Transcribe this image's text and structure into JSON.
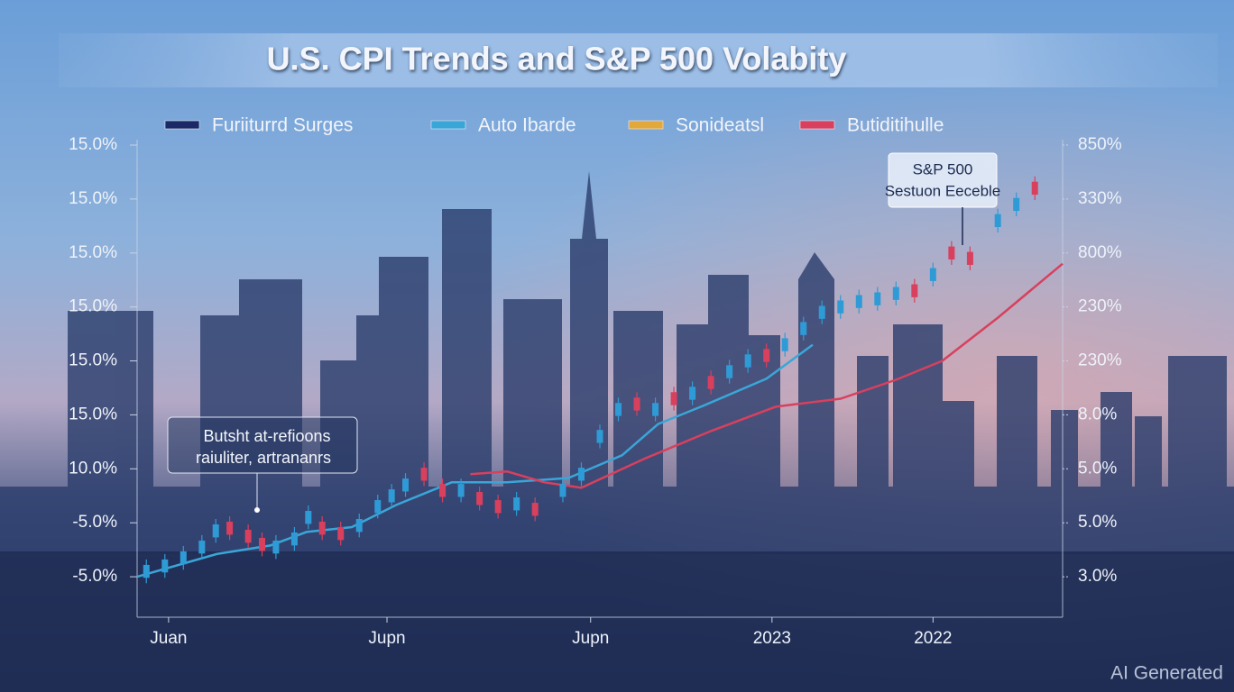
{
  "chart_data": {
    "type": "candlestick",
    "title": "U.S. CPI Trends and S&P 500 Volabity",
    "series": [
      {
        "name": "Furiiturrd Surges",
        "color": "#1b2a66"
      },
      {
        "name": "Auto Ibarde",
        "color": "#3aa6d8",
        "x": [
          0,
          8.6,
          14.4,
          18.3,
          23.2,
          28,
          34,
          40,
          46.6,
          52.4,
          56.3,
          61.2,
          68,
          73
        ],
        "values": [
          0,
          0.42,
          0.58,
          0.83,
          0.92,
          1.33,
          1.75,
          1.75,
          1.83,
          2.25,
          2.83,
          3.17,
          3.67,
          4.3
        ]
      },
      {
        "name": "Sonideatsl",
        "color": "#e3a83a"
      },
      {
        "name": "Butiditihulle",
        "color": "#d8405e",
        "x": [
          36,
          40,
          44,
          48,
          55,
          62,
          69,
          76,
          82,
          87,
          93,
          100
        ],
        "values": [
          1.9,
          1.95,
          1.75,
          1.65,
          2.2,
          2.7,
          3.15,
          3.3,
          3.65,
          4.0,
          4.8,
          5.8
        ]
      }
    ],
    "candles": {
      "up_color": "#2f9bd6",
      "down_color": "#d8405e",
      "x": [
        1,
        3,
        5,
        7,
        8.5,
        10,
        12,
        13.5,
        15,
        17,
        18.5,
        20,
        22,
        24,
        26,
        27.5,
        29,
        31,
        33,
        35,
        37,
        39,
        41,
        43,
        46,
        48,
        50,
        52,
        54,
        56,
        58,
        60,
        62,
        64,
        66,
        68,
        70,
        72,
        74,
        76,
        78,
        80,
        82,
        84,
        86,
        88,
        90,
        93,
        95,
        97
      ],
      "open": [
        -0.02,
        0.08,
        0.23,
        0.43,
        0.73,
        1.02,
        0.87,
        0.72,
        0.43,
        0.58,
        0.98,
        1.02,
        0.92,
        0.83,
        1.18,
        1.38,
        1.58,
        2.02,
        1.72,
        1.48,
        1.57,
        1.42,
        1.23,
        1.37,
        1.48,
        1.78,
        2.48,
        2.98,
        3.32,
        2.98,
        3.42,
        3.28,
        3.72,
        3.68,
        3.88,
        4.22,
        4.18,
        4.48,
        4.78,
        4.88,
        4.98,
        5.03,
        5.13,
        5.42,
        5.48,
        6.12,
        6.02,
        6.48,
        6.78,
        7.32
      ],
      "close": [
        0.22,
        0.32,
        0.47,
        0.67,
        0.97,
        0.78,
        0.63,
        0.48,
        0.67,
        0.82,
        1.22,
        0.78,
        0.68,
        1.07,
        1.42,
        1.62,
        1.82,
        1.78,
        1.48,
        1.72,
        1.33,
        1.18,
        1.47,
        1.13,
        1.72,
        2.02,
        2.72,
        3.22,
        3.08,
        3.22,
        3.18,
        3.52,
        3.48,
        3.92,
        4.12,
        3.98,
        4.42,
        4.72,
        5.02,
        5.12,
        5.22,
        5.27,
        5.37,
        5.18,
        5.72,
        5.88,
        5.78,
        6.72,
        7.02,
        7.08
      ],
      "high": [
        0.32,
        0.42,
        0.57,
        0.77,
        1.07,
        1.12,
        0.97,
        0.82,
        0.77,
        0.92,
        1.32,
        1.12,
        1.02,
        1.17,
        1.52,
        1.72,
        1.92,
        2.12,
        1.82,
        1.82,
        1.67,
        1.52,
        1.57,
        1.47,
        1.82,
        2.12,
        2.82,
        3.32,
        3.42,
        3.32,
        3.52,
        3.62,
        3.82,
        4.02,
        4.22,
        4.32,
        4.52,
        4.82,
        5.12,
        5.22,
        5.32,
        5.37,
        5.47,
        5.52,
        5.82,
        6.22,
        6.12,
        6.82,
        7.12,
        7.42
      ],
      "low": [
        -0.12,
        -0.02,
        0.13,
        0.33,
        0.63,
        0.68,
        0.53,
        0.38,
        0.33,
        0.48,
        0.88,
        0.68,
        0.58,
        0.73,
        1.08,
        1.28,
        1.48,
        1.68,
        1.38,
        1.38,
        1.23,
        1.08,
        1.13,
        1.03,
        1.38,
        1.68,
        2.38,
        2.88,
        2.98,
        2.88,
        3.08,
        3.18,
        3.38,
        3.58,
        3.78,
        3.88,
        4.08,
        4.38,
        4.68,
        4.78,
        4.88,
        4.93,
        5.03,
        5.08,
        5.38,
        5.78,
        5.68,
        6.38,
        6.68,
        6.98
      ]
    },
    "xlim": [
      0,
      100
    ],
    "xticks": [
      {
        "value": 3.4,
        "label": "Juan"
      },
      {
        "value": 27,
        "label": "Jupn"
      },
      {
        "value": 49,
        "label": "Jupn"
      },
      {
        "value": 68.6,
        "label": "2023"
      },
      {
        "value": 86,
        "label": "2022"
      }
    ],
    "ylim": [
      -0.75,
      8.1
    ],
    "yticks": [
      {
        "value": 0,
        "label": "-5.0%"
      },
      {
        "value": 1,
        "label": "-5.0%"
      },
      {
        "value": 2,
        "label": "10.0%"
      },
      {
        "value": 3,
        "label": "15.0%"
      },
      {
        "value": 4,
        "label": "15.0%"
      },
      {
        "value": 5,
        "label": "15.0%"
      },
      {
        "value": 6,
        "label": "15.0%"
      },
      {
        "value": 7,
        "label": "15.0%"
      },
      {
        "value": 8,
        "label": "15.0%"
      }
    ],
    "y2lim": [
      -0.75,
      8.1
    ],
    "y2ticks": [
      {
        "value": 0,
        "label": "3.0%"
      },
      {
        "value": 1,
        "label": "5.0%"
      },
      {
        "value": 2,
        "label": "5.0%"
      },
      {
        "value": 3,
        "label": "8.0%"
      },
      {
        "value": 4,
        "label": "230%"
      },
      {
        "value": 5,
        "label": "230%"
      },
      {
        "value": 6,
        "label": "800%"
      },
      {
        "value": 7,
        "label": "330%"
      },
      {
        "value": 8,
        "label": "850%"
      }
    ],
    "annotations": [
      {
        "lines": [
          "S&P 500",
          "Sestuon Eeceble"
        ]
      },
      {
        "lines": [
          "Butsht at-refioons",
          "raiuliter, artrananrs"
        ]
      }
    ],
    "watermark": "AI Generated"
  }
}
